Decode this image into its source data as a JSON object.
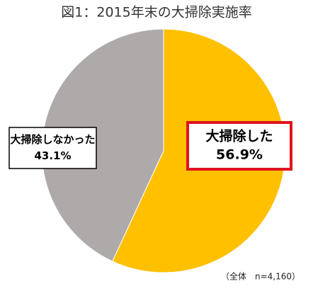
{
  "chart_data": {
    "type": "pie",
    "title": "図1：2015年末の大掃除実施率",
    "categories": [
      "大掃除した",
      "大掃除しなかった"
    ],
    "values": [
      56.9,
      43.1
    ],
    "value_labels": [
      "56.9%",
      "43.1%"
    ],
    "colors": [
      "#FFC000",
      "#AEAAAA"
    ],
    "note": "（全体　n=4,160）"
  }
}
